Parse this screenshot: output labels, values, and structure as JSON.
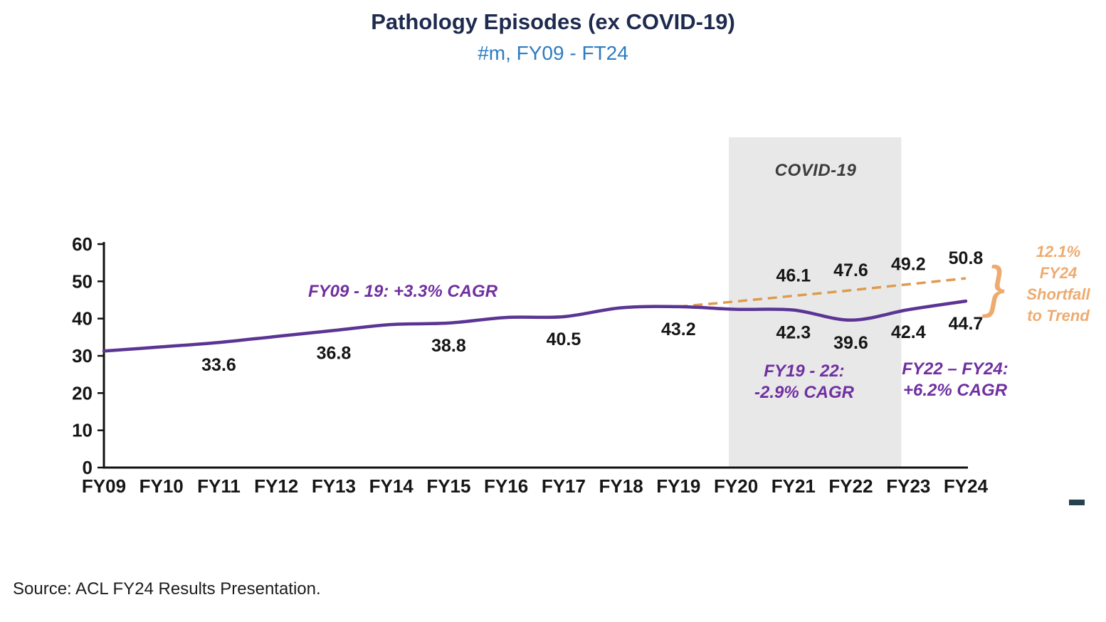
{
  "header": {
    "title": "Pathology Episodes (ex COVID-19)",
    "subtitle": "#m, FY09 - FT24"
  },
  "source": "Source: ACL FY24 Results Presentation.",
  "icons": {
    "shortfall_brace": "}"
  },
  "colors": {
    "title": "#1e2b4e",
    "subtitle": "#2d7cc1",
    "actual_line": "#5b3494",
    "trend_line": "#dd9b4f",
    "annotation_purple": "#7030a0",
    "shortfall_orange": "#eeab70",
    "covid_band": "#e8e8e8",
    "covid_label": "#3c3c3c",
    "data_label": "#161616",
    "axis": "#111111"
  },
  "chart_data": {
    "type": "line",
    "title": "Pathology Episodes (ex COVID-19)",
    "subtitle": "#m, FY09 - FT24",
    "categories": [
      "FY09",
      "FY10",
      "FY11",
      "FY12",
      "FY13",
      "FY14",
      "FY15",
      "FY16",
      "FY17",
      "FY18",
      "FY19",
      "FY20",
      "FY21",
      "FY22",
      "FY23",
      "FY24"
    ],
    "ylim": [
      0,
      60
    ],
    "yticks": [
      0,
      10,
      20,
      30,
      40,
      50,
      60
    ],
    "grid": false,
    "legend": "none",
    "series": {
      "actual": {
        "values": [
          31.3,
          32.4,
          33.6,
          35.2,
          36.8,
          38.4,
          38.8,
          40.3,
          40.5,
          42.9,
          43.2,
          42.5,
          42.3,
          39.6,
          42.4,
          44.7
        ]
      },
      "trend": {
        "start_category": "FY19",
        "style": "dashed",
        "values": [
          43.2,
          44.6,
          46.1,
          47.6,
          49.2,
          50.8
        ]
      }
    },
    "value_labels": [
      {
        "fy": "FY11",
        "text": "33.6"
      },
      {
        "fy": "FY13",
        "text": "36.8"
      },
      {
        "fy": "FY15",
        "text": "38.8"
      },
      {
        "fy": "FY17",
        "text": "40.5"
      },
      {
        "fy": "FY19",
        "text": "43.2"
      },
      {
        "fy": "FY21",
        "text": "42.3"
      },
      {
        "fy": "FY22",
        "text": "39.6"
      },
      {
        "fy": "FY23",
        "text": "42.4"
      },
      {
        "fy": "FY24",
        "text": "44.7"
      }
    ],
    "trend_labels": [
      {
        "fy": "FY21",
        "text": "46.1"
      },
      {
        "fy": "FY22",
        "text": "47.6"
      },
      {
        "fy": "FY23",
        "text": "49.2"
      },
      {
        "fy": "FY24",
        "text": "50.8"
      }
    ],
    "covid_band": {
      "label": "COVID-19",
      "start_category": "FY20",
      "end_category": "FY23"
    },
    "annotations": {
      "cagr_fy09_19": "FY09 - 19: +3.3% CAGR",
      "cagr_fy19_22": [
        "FY19 - 22:",
        "-2.9% CAGR"
      ],
      "cagr_fy22_24": [
        "FY22 – FY24:",
        "+6.2% CAGR"
      ],
      "shortfall": [
        "12.1%",
        "FY24",
        "Shortfall",
        "to Trend"
      ]
    }
  }
}
